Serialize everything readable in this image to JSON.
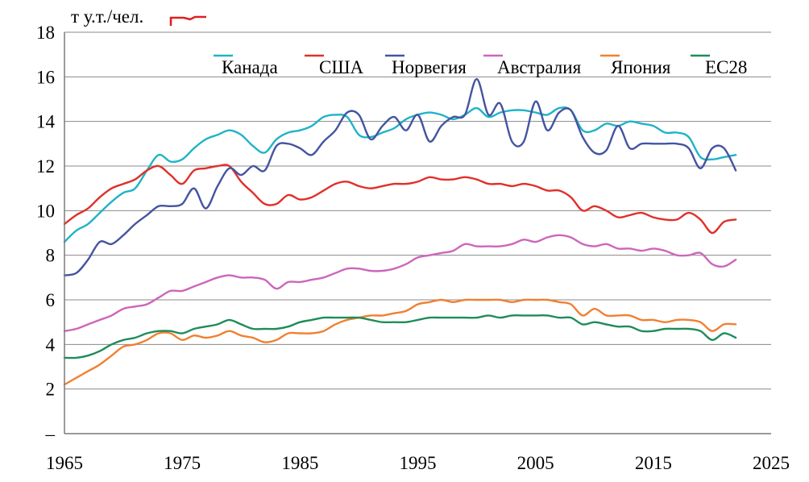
{
  "chart_data": {
    "type": "line",
    "unit_label": "т у.т./чел.",
    "xlim": [
      1965,
      2025
    ],
    "ylim": [
      0,
      18
    ],
    "x_ticks": [
      "1965",
      "1975",
      "1985",
      "1995",
      "2005",
      "2015",
      "2025"
    ],
    "y_ticks": [
      "–",
      "2",
      "4",
      "6",
      "8",
      "10",
      "12",
      "14",
      "16",
      "18"
    ],
    "grid": "horizontal",
    "legend_position": "top",
    "x": [
      1965,
      1966,
      1967,
      1968,
      1969,
      1970,
      1971,
      1972,
      1973,
      1974,
      1975,
      1976,
      1977,
      1978,
      1979,
      1980,
      1981,
      1982,
      1983,
      1984,
      1985,
      1986,
      1987,
      1988,
      1989,
      1990,
      1991,
      1992,
      1993,
      1994,
      1995,
      1996,
      1997,
      1998,
      1999,
      2000,
      2001,
      2002,
      2003,
      2004,
      2005,
      2006,
      2007,
      2008,
      2009,
      2010,
      2011,
      2012,
      2013,
      2014,
      2015,
      2016,
      2017,
      2018,
      2019,
      2020,
      2021,
      2022
    ],
    "series": [
      {
        "name": "Канада",
        "color": "#1fb3c8",
        "values": [
          8.6,
          9.1,
          9.4,
          9.9,
          10.4,
          10.8,
          11.0,
          11.8,
          12.5,
          12.2,
          12.3,
          12.8,
          13.2,
          13.4,
          13.6,
          13.4,
          12.9,
          12.6,
          13.2,
          13.5,
          13.6,
          13.8,
          14.2,
          14.3,
          14.2,
          13.4,
          13.3,
          13.5,
          13.7,
          14.1,
          14.3,
          14.4,
          14.3,
          14.1,
          14.3,
          14.6,
          14.2,
          14.4,
          14.5,
          14.5,
          14.4,
          14.3,
          14.6,
          14.5,
          13.6,
          13.6,
          13.9,
          13.8,
          14.0,
          13.9,
          13.8,
          13.5,
          13.5,
          13.3,
          12.4,
          12.3,
          12.4,
          12.5
        ]
      },
      {
        "name": "США",
        "color": "#e0302a",
        "values": [
          9.4,
          9.8,
          10.1,
          10.6,
          11.0,
          11.2,
          11.4,
          11.8,
          12.0,
          11.6,
          11.2,
          11.8,
          11.9,
          12.0,
          12.0,
          11.3,
          10.8,
          10.3,
          10.3,
          10.7,
          10.5,
          10.6,
          10.9,
          11.2,
          11.3,
          11.1,
          11.0,
          11.1,
          11.2,
          11.2,
          11.3,
          11.5,
          11.4,
          11.4,
          11.5,
          11.4,
          11.2,
          11.2,
          11.1,
          11.2,
          11.1,
          10.9,
          10.9,
          10.6,
          10.0,
          10.2,
          10.0,
          9.7,
          9.8,
          9.9,
          9.7,
          9.6,
          9.6,
          9.9,
          9.6,
          9.0,
          9.5,
          9.6
        ]
      },
      {
        "name": "Норвегия",
        "color": "#4454a0",
        "values": [
          7.1,
          7.2,
          7.8,
          8.6,
          8.5,
          8.9,
          9.4,
          9.8,
          10.2,
          10.2,
          10.3,
          11.0,
          10.1,
          11.1,
          11.9,
          11.6,
          12.0,
          11.8,
          12.9,
          13.0,
          12.8,
          12.5,
          13.1,
          13.6,
          14.4,
          14.3,
          13.2,
          13.8,
          14.2,
          13.6,
          14.3,
          13.1,
          13.8,
          14.2,
          14.3,
          15.9,
          14.3,
          14.8,
          13.1,
          13.1,
          14.9,
          13.6,
          14.4,
          14.5,
          13.3,
          12.6,
          12.7,
          13.8,
          12.8,
          13.0,
          13.0,
          13.0,
          13.0,
          12.8,
          11.9,
          12.8,
          12.8,
          11.8
        ]
      },
      {
        "name": "Австралия",
        "color": "#cc66bb",
        "values": [
          4.6,
          4.7,
          4.9,
          5.1,
          5.3,
          5.6,
          5.7,
          5.8,
          6.1,
          6.4,
          6.4,
          6.6,
          6.8,
          7.0,
          7.1,
          7.0,
          7.0,
          6.9,
          6.5,
          6.8,
          6.8,
          6.9,
          7.0,
          7.2,
          7.4,
          7.4,
          7.3,
          7.3,
          7.4,
          7.6,
          7.9,
          8.0,
          8.1,
          8.2,
          8.5,
          8.4,
          8.4,
          8.4,
          8.5,
          8.7,
          8.6,
          8.8,
          8.9,
          8.8,
          8.5,
          8.4,
          8.5,
          8.3,
          8.3,
          8.2,
          8.3,
          8.2,
          8.0,
          8.0,
          8.1,
          7.6,
          7.5,
          7.8
        ]
      },
      {
        "name": "Япония",
        "color": "#f08030",
        "values": [
          2.2,
          2.5,
          2.8,
          3.1,
          3.5,
          3.9,
          4.0,
          4.2,
          4.5,
          4.5,
          4.2,
          4.4,
          4.3,
          4.4,
          4.6,
          4.4,
          4.3,
          4.1,
          4.2,
          4.5,
          4.5,
          4.5,
          4.6,
          4.9,
          5.1,
          5.2,
          5.3,
          5.3,
          5.4,
          5.5,
          5.8,
          5.9,
          6.0,
          5.9,
          6.0,
          6.0,
          6.0,
          6.0,
          5.9,
          6.0,
          6.0,
          6.0,
          5.9,
          5.8,
          5.3,
          5.6,
          5.3,
          5.3,
          5.3,
          5.1,
          5.1,
          5.0,
          5.1,
          5.1,
          5.0,
          4.6,
          4.9,
          4.9
        ]
      },
      {
        "name": "ЕС28",
        "color": "#1e8c5a",
        "values": [
          3.4,
          3.4,
          3.5,
          3.7,
          4.0,
          4.2,
          4.3,
          4.5,
          4.6,
          4.6,
          4.5,
          4.7,
          4.8,
          4.9,
          5.1,
          4.9,
          4.7,
          4.7,
          4.7,
          4.8,
          5.0,
          5.1,
          5.2,
          5.2,
          5.2,
          5.2,
          5.1,
          5.0,
          5.0,
          5.0,
          5.1,
          5.2,
          5.2,
          5.2,
          5.2,
          5.2,
          5.3,
          5.2,
          5.3,
          5.3,
          5.3,
          5.3,
          5.2,
          5.2,
          4.9,
          5.0,
          4.9,
          4.8,
          4.8,
          4.6,
          4.6,
          4.7,
          4.7,
          4.7,
          4.6,
          4.2,
          4.5,
          4.3
        ]
      }
    ]
  }
}
